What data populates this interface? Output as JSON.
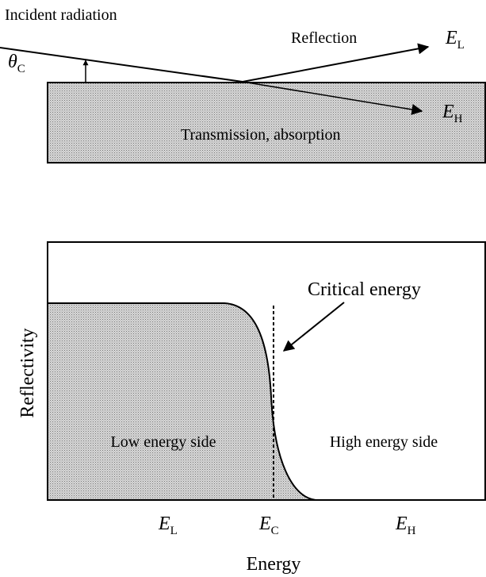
{
  "top_panel": {
    "incident_label": "Incident radiation",
    "angle_label": {
      "symbol": "θ",
      "sub": "C"
    },
    "reflection_label": "Reflection",
    "reflected_energy": {
      "symbol": "E",
      "sub": "L"
    },
    "transmitted_energy": {
      "symbol": "E",
      "sub": "H"
    },
    "slab_label": "Transmission, absorption"
  },
  "bottom_panel": {
    "y_axis_label": "Reflectivity",
    "x_axis_label": "Energy",
    "annotation": "Critical energy",
    "regions": [
      "Low energy side",
      "High energy side"
    ],
    "x_markers": [
      {
        "symbol": "E",
        "sub": "L"
      },
      {
        "symbol": "E",
        "sub": "C"
      },
      {
        "symbol": "E",
        "sub": "H"
      }
    ]
  }
}
